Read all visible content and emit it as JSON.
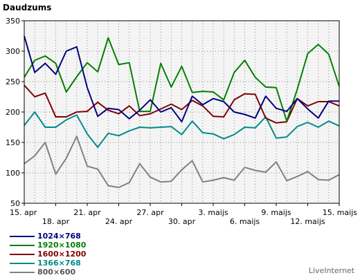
{
  "chart_data": {
    "type": "line",
    "title": "Daudzums",
    "ylim": [
      50,
      350
    ],
    "yticks": [
      50,
      100,
      150,
      200,
      250,
      300,
      350
    ],
    "grid": true,
    "x": [
      "15. apr",
      "16. apr",
      "17. apr",
      "18. apr",
      "19. apr",
      "20. apr",
      "21. apr",
      "22. apr",
      "23. apr",
      "24. apr",
      "25. apr",
      "26. apr",
      "27. apr",
      "28. apr",
      "29. apr",
      "30. apr",
      "1. maijs",
      "2. maijs",
      "3. maijs",
      "4. maijs",
      "5. maijs",
      "6. maijs",
      "7. maijs",
      "8. maijs",
      "9. maijs",
      "10. maijs",
      "11. maijs",
      "12. maijs",
      "13. maijs",
      "14. maijs",
      "15. maijs"
    ],
    "xtick_labels_top": [
      "15. apr",
      "21. apr",
      "27. apr",
      "3. maijs",
      "9. maijs",
      "15. maijs"
    ],
    "xtick_labels_bottom": [
      "18. apr",
      "24. apr",
      "30. apr",
      "6. maijs",
      "12. maijs"
    ],
    "series": [
      {
        "name": "1024×768",
        "color": "#000080",
        "values": [
          325,
          265,
          280,
          262,
          300,
          307,
          240,
          193,
          206,
          204,
          189,
          203,
          220,
          200,
          207,
          184,
          226,
          212,
          222,
          217,
          200,
          196,
          190,
          226,
          206,
          201,
          222,
          205,
          190,
          218,
          218
        ]
      },
      {
        "name": "1920×1080",
        "color": "#008000",
        "values": [
          257,
          285,
          292,
          280,
          233,
          258,
          281,
          266,
          322,
          278,
          281,
          201,
          201,
          280,
          241,
          275,
          232,
          234,
          233,
          220,
          265,
          285,
          257,
          241,
          240,
          185,
          237,
          296,
          311,
          295,
          242
        ]
      },
      {
        "name": "1600×1200",
        "color": "#800000",
        "values": [
          244,
          225,
          231,
          192,
          192,
          200,
          201,
          216,
          203,
          197,
          210,
          194,
          197,
          205,
          213,
          204,
          219,
          210,
          193,
          192,
          220,
          230,
          229,
          190,
          182,
          184,
          222,
          210,
          217,
          217,
          210
        ]
      },
      {
        "name": "1366×768",
        "color": "#008b8b",
        "values": [
          178,
          200,
          175,
          175,
          187,
          195,
          164,
          142,
          165,
          161,
          169,
          175,
          174,
          175,
          176,
          163,
          185,
          166,
          164,
          156,
          163,
          175,
          174,
          192,
          157,
          159,
          176,
          183,
          175,
          185,
          177
        ]
      },
      {
        "name": "800×600",
        "color": "#808080",
        "values": [
          115,
          128,
          150,
          98,
          124,
          160,
          111,
          106,
          79,
          76,
          84,
          115,
          93,
          85,
          86,
          105,
          120,
          85,
          88,
          92,
          88,
          109,
          104,
          101,
          118,
          87,
          94,
          102,
          89,
          88,
          97
        ]
      }
    ]
  },
  "brand": "LiveInternet"
}
